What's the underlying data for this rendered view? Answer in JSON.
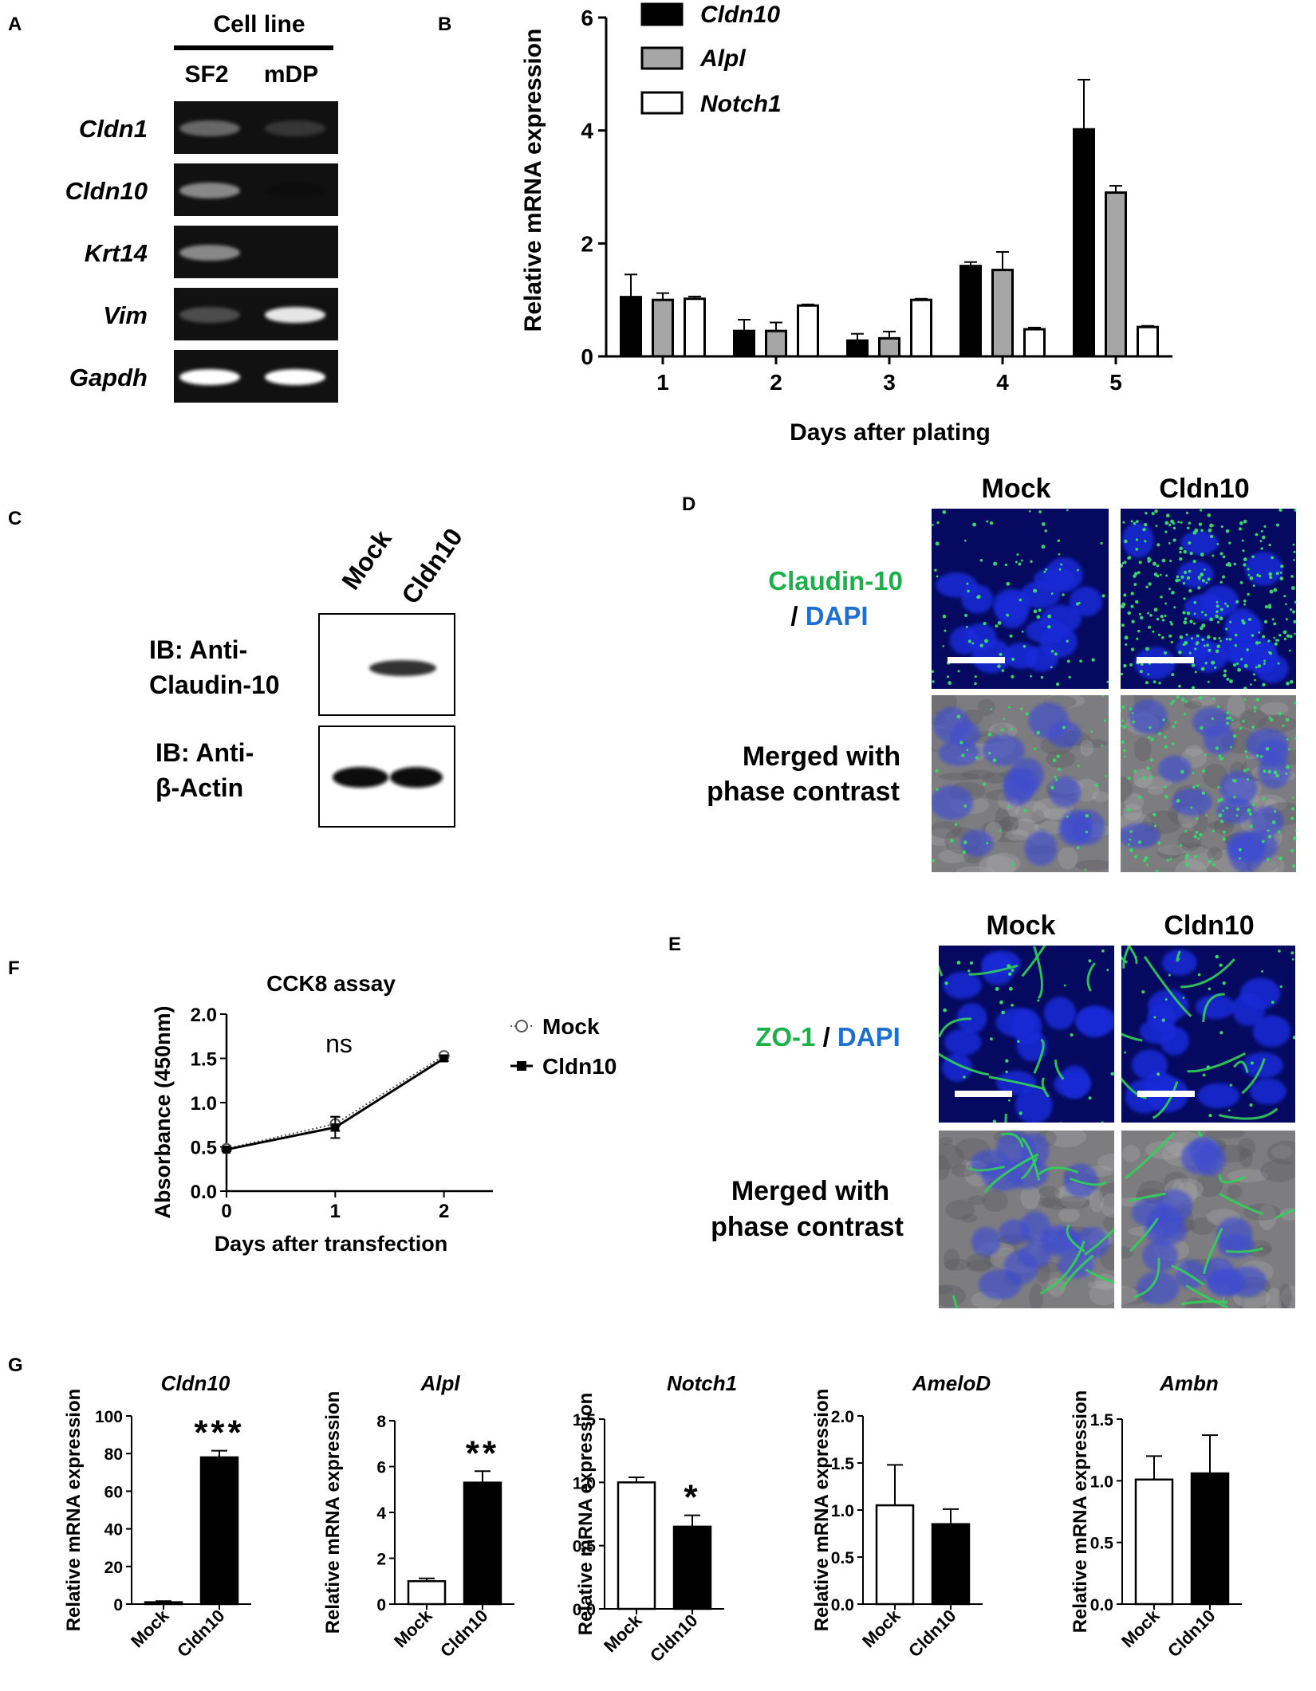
{
  "panels": {
    "A": {
      "letter": "A",
      "header": "Cell line",
      "columns": [
        "SF2",
        "mDP"
      ],
      "genes": [
        "Cldn1",
        "Cldn10",
        "Krt14",
        "Vim",
        "Gapdh"
      ],
      "band_intensity": [
        [
          0.55,
          0.35
        ],
        [
          0.65,
          0.08
        ],
        [
          0.65,
          0.05
        ],
        [
          0.45,
          0.9
        ],
        [
          1.0,
          1.0
        ]
      ]
    },
    "B": {
      "letter": "B",
      "ylabel": "Relative mRNA expression",
      "xlabel": "Days after plating",
      "legend": [
        "Cldn10",
        "Alpl",
        "Notch1"
      ]
    },
    "C": {
      "letter": "C",
      "lanes": [
        "Mock",
        "Cldn10"
      ],
      "blot1_line1": "IB: Anti-",
      "blot1_line2": "Claudin-10",
      "blot2_line1": "IB: Anti-",
      "blot2_line2": "β-Actin"
    },
    "D": {
      "letter": "D",
      "col_mock": "Mock",
      "col_cldn10": "Cldn10",
      "row1_green": "Claudin-10",
      "row1_sep": "/",
      "row1_blue": "DAPI",
      "row2_line1": "Merged with",
      "row2_line2": "phase contrast"
    },
    "E": {
      "letter": "E",
      "col_mock": "Mock",
      "col_cldn10": "Cldn10",
      "row1_green": "ZO-1",
      "row1_sep": "/",
      "row1_blue": "DAPI",
      "row2_line1": "Merged with",
      "row2_line2": "phase contrast"
    },
    "F": {
      "letter": "F",
      "title": "CCK8 assay",
      "ylabel": "Absorbance (450nm)",
      "xlabel": "Days after transfection",
      "annotation": "ns",
      "legend": [
        "Mock",
        "Cldn10"
      ]
    },
    "G": {
      "letter": "G",
      "ylabel": "Relative mRNA expression"
    }
  },
  "colors": {
    "cldn10_bar": "#000000",
    "alpl_bar": "#a6a6a6",
    "notch1_bar": "#ffffff",
    "green_label": "#1bb04a",
    "blue_label": "#1f6fd0",
    "gel_bg": "#111111",
    "micro_bg": "#0a1a8a"
  },
  "chart_data": [
    {
      "id": "B",
      "type": "bar",
      "categories": [
        "1",
        "2",
        "3",
        "4",
        "5"
      ],
      "series": [
        {
          "name": "Cldn10",
          "values": [
            1.05,
            0.45,
            0.28,
            1.6,
            4.02
          ],
          "errors": [
            0.4,
            0.2,
            0.12,
            0.07,
            0.88
          ]
        },
        {
          "name": "Alpl",
          "values": [
            1.0,
            0.45,
            0.32,
            1.53,
            2.9
          ],
          "errors": [
            0.12,
            0.15,
            0.12,
            0.32,
            0.12
          ]
        },
        {
          "name": "Notch1",
          "values": [
            1.02,
            0.9,
            1.0,
            0.48,
            0.52
          ],
          "errors": [
            0.04,
            0.02,
            0.02,
            0.03,
            0.02
          ]
        }
      ],
      "xlabel": "Days after plating",
      "ylabel": "Relative mRNA expression",
      "ylim": [
        0,
        6
      ],
      "yticks": [
        0,
        2,
        4,
        6
      ]
    },
    {
      "id": "F",
      "type": "line",
      "title": "CCK8 assay",
      "x": [
        0,
        1,
        2
      ],
      "series": [
        {
          "name": "Mock",
          "values": [
            0.48,
            0.76,
            1.53
          ],
          "errors": [
            0.02,
            0.08,
            0.03
          ],
          "style": "dotted-open-circle"
        },
        {
          "name": "Cldn10",
          "values": [
            0.47,
            0.72,
            1.5
          ],
          "errors": [
            0.02,
            0.12,
            0.03
          ],
          "style": "solid-filled-square"
        }
      ],
      "xlabel": "Days after transfection",
      "ylabel": "Absorbance (450nm)",
      "ylim": [
        0,
        2.0
      ],
      "yticks": [
        "0.0",
        "0.5",
        "1.0",
        "1.5",
        "2.0"
      ],
      "xticks": [
        "0",
        "1",
        "2"
      ],
      "annotation": "ns"
    },
    {
      "id": "G1",
      "type": "bar",
      "title": "Cldn10",
      "categories": [
        "Mock",
        "Cldn10"
      ],
      "values": [
        1,
        78
      ],
      "errors": [
        0.6,
        3.5
      ],
      "fills": [
        "white",
        "black"
      ],
      "significance": "***",
      "ylabel": "Relative mRNA expression",
      "ylim": [
        0,
        100
      ],
      "yticks": [
        "0",
        "20",
        "40",
        "60",
        "80",
        "100"
      ]
    },
    {
      "id": "G2",
      "type": "bar",
      "title": "Alpl",
      "categories": [
        "Mock",
        "Cldn10"
      ],
      "values": [
        1.0,
        5.3
      ],
      "errors": [
        0.12,
        0.5
      ],
      "fills": [
        "white",
        "black"
      ],
      "significance": "**",
      "ylabel": "Relative mRNA expression",
      "ylim": [
        0,
        8
      ],
      "yticks": [
        "0",
        "2",
        "4",
        "6",
        "8"
      ]
    },
    {
      "id": "G3",
      "type": "bar",
      "title": "Notch1",
      "categories": [
        "Mock",
        "Cldn10"
      ],
      "values": [
        1.0,
        0.65
      ],
      "errors": [
        0.04,
        0.09
      ],
      "fills": [
        "white",
        "black"
      ],
      "significance": "*",
      "ylabel": "Relative mRNA expression",
      "ylim": [
        0,
        1.5
      ],
      "yticks": [
        "0.0",
        "0.5",
        "1.0",
        "1.5"
      ]
    },
    {
      "id": "G4",
      "type": "bar",
      "title": "AmeloD",
      "categories": [
        "Mock",
        "Cldn10"
      ],
      "values": [
        1.05,
        0.85
      ],
      "errors": [
        0.43,
        0.16
      ],
      "fills": [
        "white",
        "black"
      ],
      "significance": "",
      "ylabel": "Relative mRNA expression",
      "ylim": [
        0,
        2.0
      ],
      "yticks": [
        "0.0",
        "0.5",
        "1.0",
        "1.5",
        "2.0"
      ]
    },
    {
      "id": "G5",
      "type": "bar",
      "title": "Ambn",
      "categories": [
        "Mock",
        "Cldn10"
      ],
      "values": [
        1.01,
        1.06
      ],
      "errors": [
        0.19,
        0.31
      ],
      "fills": [
        "white",
        "black"
      ],
      "significance": "",
      "ylabel": "Relative mRNA expression",
      "ylim": [
        0,
        1.5
      ],
      "yticks": [
        "0.0",
        "0.5",
        "1.0",
        "1.5"
      ]
    }
  ]
}
